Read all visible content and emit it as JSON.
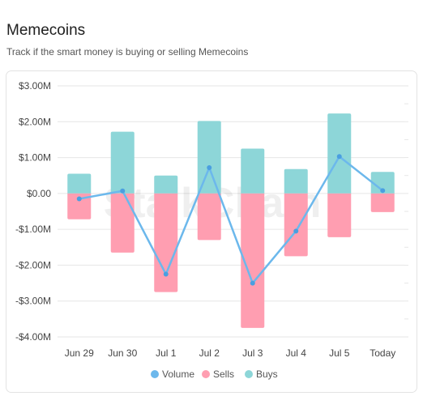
{
  "header": {
    "title": "Memecoins",
    "subtitle": "Track if the smart money is buying or selling Memecoins"
  },
  "watermark": "StalkChain",
  "colors": {
    "buys": "#8dd6d8",
    "sells": "#ff9eb1",
    "volume": "#6cb8ec",
    "grid": "#e6e6e6"
  },
  "chart_data": {
    "type": "bar",
    "categories": [
      "Jun 29",
      "Jun 30",
      "Jul 1",
      "Jul 2",
      "Jul 3",
      "Jul 4",
      "Jul 5",
      "Today"
    ],
    "y_tick_labels": [
      "$3.00M",
      "$2.00M",
      "$1.00M",
      "$0.00",
      "-$1.00M",
      "-$2.00M",
      "-$3.00M",
      "-$4.00M"
    ],
    "y_ticks": [
      3,
      2,
      1,
      0,
      -1,
      -2,
      -3,
      -4
    ],
    "ylim": [
      -4,
      3
    ],
    "y_unit": "$M",
    "series": [
      {
        "name": "Buys",
        "type": "bar",
        "values": [
          0.55,
          1.72,
          0.5,
          2.02,
          1.25,
          0.68,
          2.23,
          0.6
        ]
      },
      {
        "name": "Sells",
        "type": "bar",
        "values": [
          -0.72,
          -1.65,
          -2.75,
          -1.3,
          -3.75,
          -1.75,
          -1.22,
          -0.52
        ]
      },
      {
        "name": "Volume",
        "type": "line",
        "values": [
          -0.15,
          0.07,
          -2.25,
          0.72,
          -2.5,
          -1.05,
          1.03,
          0.08
        ]
      }
    ],
    "legend": {
      "position": "bottom",
      "items": [
        "Volume",
        "Sells",
        "Buys"
      ]
    },
    "grid": true
  }
}
